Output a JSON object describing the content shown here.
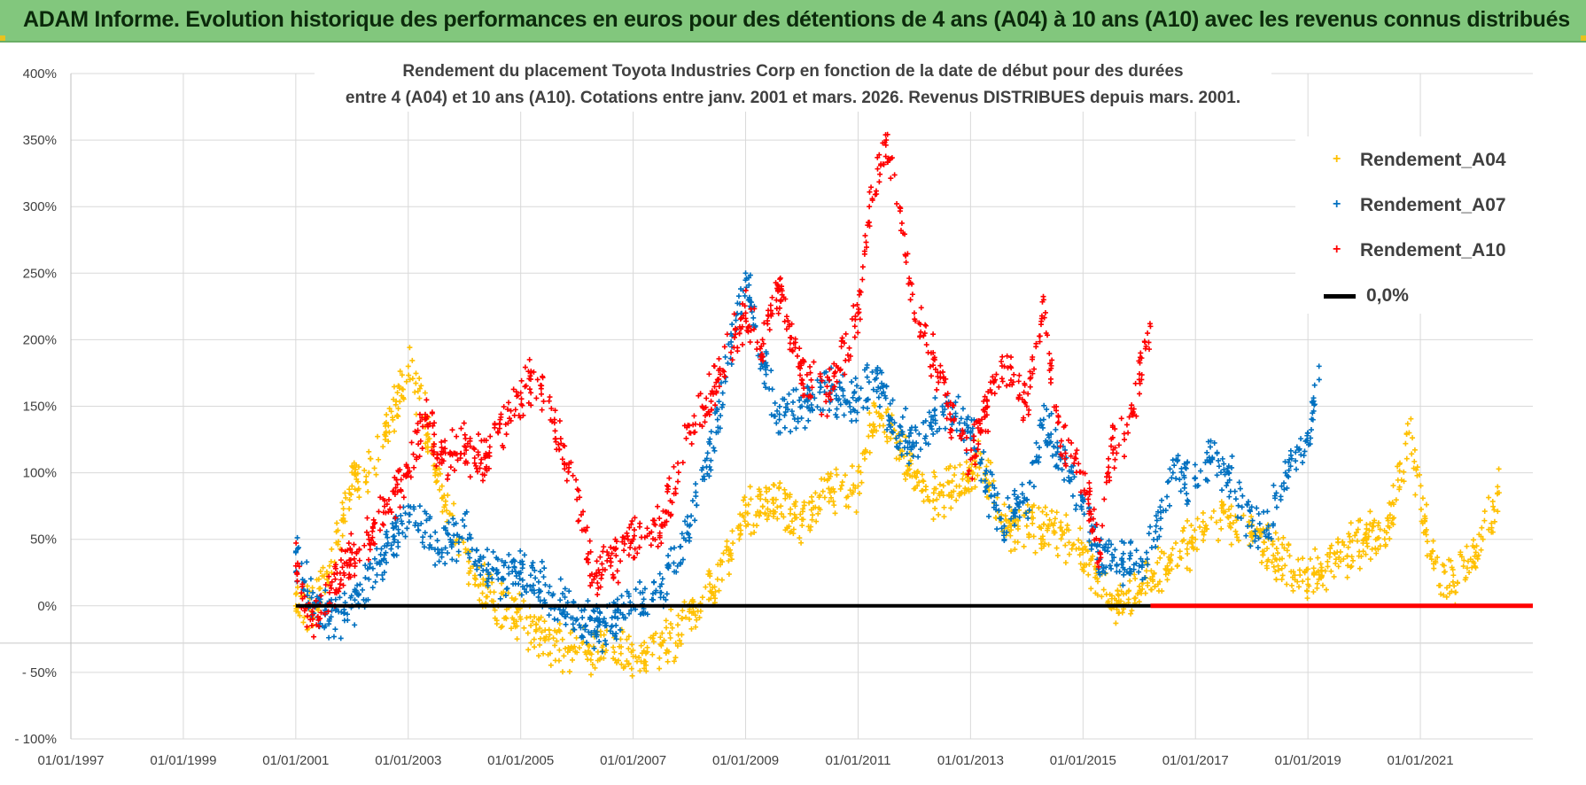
{
  "header": {
    "title": "ADAM Informe. Evolution historique des performances en euros pour des détentions de 4 ans (A04) à 10 ans (A10) avec les revenus connus distribués"
  },
  "colors": {
    "header_bg": "#82c77d",
    "a04": "#ffc000",
    "a07": "#0070c0",
    "a10": "#ff0000",
    "zero": "#000000"
  },
  "chart_data": {
    "type": "scatter",
    "title": "Rendement du placement Toyota Industries Corp en fonction de la date de début pour des durées",
    "subtitle": "entre 4 (A04) et 10 ans (A10).  Cotations entre janv. 2001 et mars. 2026. Revenus DISTRIBUES depuis mars. 2001.",
    "xlabel": "",
    "ylabel": "",
    "xlim": [
      1997.0,
      2023.0
    ],
    "ylim": [
      -100,
      400
    ],
    "y_ticks": [
      400,
      350,
      300,
      250,
      200,
      150,
      100,
      50,
      0,
      -50,
      -100
    ],
    "y_tick_labels": [
      "400%",
      "350%",
      "300%",
      "250%",
      "200%",
      "150%",
      "100%",
      "50%",
      "0%",
      "- 50%",
      "- 100%"
    ],
    "x_ticks": [
      1997,
      1999,
      2001,
      2003,
      2005,
      2007,
      2009,
      2011,
      2013,
      2015,
      2017,
      2019,
      2021
    ],
    "x_tick_labels": [
      "01/01/1997",
      "01/01/1999",
      "01/01/2001",
      "01/01/2003",
      "01/01/2005",
      "01/01/2007",
      "01/01/2009",
      "01/01/2011",
      "01/01/2013",
      "01/01/2015",
      "01/01/2017",
      "01/01/2019",
      "01/01/2021"
    ],
    "legend": {
      "position": "top-right",
      "zero_label": "0,0%"
    },
    "series": [
      {
        "name": "Rendement_A04",
        "color": "#ffc000",
        "x": [
          2001.0,
          2001.3,
          2001.6,
          2002.0,
          2002.3,
          2002.6,
          2003.0,
          2003.3,
          2003.6,
          2003.9,
          2004.2,
          2004.6,
          2005.0,
          2005.5,
          2006.0,
          2006.5,
          2007.0,
          2007.5,
          2008.0,
          2008.5,
          2009.0,
          2009.5,
          2010.0,
          2010.5,
          2011.0,
          2011.3,
          2011.6,
          2012.0,
          2012.4,
          2012.8,
          2013.2,
          2013.6,
          2014.0,
          2014.5,
          2015.0,
          2015.5,
          2016.0,
          2016.5,
          2017.0,
          2017.5,
          2018.0,
          2018.5,
          2019.0,
          2019.5,
          2020.0,
          2020.4,
          2020.8,
          2021.2,
          2021.6,
          2022.0,
          2022.4
        ],
        "values": [
          0,
          -5,
          30,
          90,
          100,
          130,
          180,
          140,
          90,
          50,
          20,
          0,
          -10,
          -25,
          -35,
          -35,
          -38,
          -30,
          -10,
          20,
          70,
          80,
          65,
          85,
          90,
          150,
          130,
          100,
          80,
          90,
          110,
          60,
          60,
          55,
          40,
          0,
          10,
          30,
          50,
          70,
          55,
          35,
          20,
          35,
          50,
          55,
          130,
          35,
          15,
          45,
          85
        ]
      },
      {
        "name": "Rendement_A07",
        "color": "#0070c0",
        "x": [
          2001.0,
          2001.3,
          2001.6,
          2002.0,
          2002.3,
          2002.6,
          2003.0,
          2003.3,
          2003.6,
          2004.0,
          2004.3,
          2004.6,
          2005.0,
          2005.5,
          2006.0,
          2006.5,
          2007.0,
          2007.5,
          2008.0,
          2008.5,
          2009.0,
          2009.3,
          2009.6,
          2010.0,
          2010.5,
          2011.0,
          2011.3,
          2011.6,
          2012.0,
          2012.5,
          2013.0,
          2013.3,
          2013.6,
          2014.0,
          2014.3,
          2014.6,
          2015.0,
          2015.3,
          2015.6,
          2016.0,
          2016.3,
          2016.6,
          2017.0,
          2017.3,
          2017.6,
          2018.0,
          2018.3,
          2018.6,
          2019.0,
          2019.2
        ],
        "values": [
          40,
          0,
          -10,
          0,
          20,
          40,
          75,
          55,
          40,
          60,
          30,
          20,
          25,
          10,
          -10,
          -15,
          0,
          10,
          60,
          140,
          250,
          180,
          140,
          150,
          160,
          155,
          170,
          140,
          120,
          150,
          130,
          90,
          60,
          80,
          140,
          110,
          80,
          35,
          30,
          30,
          60,
          100,
          90,
          110,
          100,
          60,
          60,
          100,
          130,
          170
        ]
      },
      {
        "name": "Rendement_A10",
        "color": "#ff0000",
        "x": [
          2001.0,
          2001.3,
          2001.6,
          2002.0,
          2002.3,
          2002.6,
          2003.0,
          2003.3,
          2003.6,
          2004.0,
          2004.3,
          2004.6,
          2005.0,
          2005.3,
          2005.6,
          2006.0,
          2006.3,
          2006.6,
          2007.0,
          2007.5,
          2008.0,
          2008.5,
          2009.0,
          2009.3,
          2009.6,
          2010.0,
          2010.5,
          2011.0,
          2011.2,
          2011.5,
          2011.8,
          2012.0,
          2012.3,
          2012.6,
          2013.0,
          2013.3,
          2013.6,
          2014.0,
          2014.3,
          2014.6,
          2015.0,
          2015.3,
          2015.5,
          2015.8,
          2016.0,
          2016.2
        ],
        "values": [
          30,
          -10,
          10,
          40,
          50,
          70,
          100,
          140,
          110,
          120,
          110,
          130,
          160,
          170,
          140,
          80,
          20,
          30,
          50,
          60,
          130,
          170,
          220,
          200,
          240,
          170,
          160,
          220,
          300,
          350,
          280,
          220,
          190,
          150,
          110,
          150,
          180,
          150,
          230,
          120,
          100,
          40,
          120,
          130,
          170,
          210
        ]
      }
    ]
  }
}
